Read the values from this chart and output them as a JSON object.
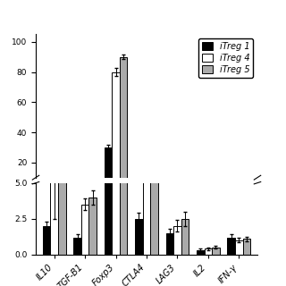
{
  "categories": [
    "IL10",
    "TGF-B1",
    "Foxp3",
    "CTLA4",
    "LAG3",
    "IL2",
    "IFN-γ"
  ],
  "series": [
    {
      "label": "iTreg 1",
      "color": "#000000",
      "edgecolor": "#000000",
      "values": [
        2.0,
        1.2,
        30.0,
        2.5,
        1.5,
        0.3,
        1.2
      ],
      "errors": [
        0.3,
        0.2,
        2.0,
        0.4,
        0.3,
        0.1,
        0.2
      ]
    },
    {
      "label": "iTreg 4",
      "color": "#ffffff",
      "edgecolor": "#000000",
      "values": [
        5.5,
        3.5,
        80.0,
        5.8,
        2.0,
        0.4,
        1.0
      ],
      "errors": [
        3.0,
        0.4,
        2.5,
        0.5,
        0.4,
        0.1,
        0.15
      ]
    },
    {
      "label": "iTreg 5",
      "color": "#aaaaaa",
      "edgecolor": "#000000",
      "values": [
        6.0,
        4.0,
        90.0,
        7.5,
        2.5,
        0.5,
        1.1
      ],
      "errors": [
        0.5,
        0.5,
        1.5,
        0.6,
        0.5,
        0.1,
        0.15
      ]
    }
  ],
  "ylabel_upper": "",
  "ylabel_lower": "",
  "bar_width": 0.25,
  "upper_ylim": [
    10,
    105
  ],
  "lower_ylim": [
    0,
    5
  ],
  "upper_yticks": [
    20,
    40,
    60,
    80,
    100
  ],
  "lower_yticks": [
    0,
    2.5,
    5
  ],
  "figsize": [
    3.2,
    3.2
  ],
  "dpi": 100,
  "legend_fontsize": 7,
  "tick_fontsize": 6.5,
  "label_fontsize": 7
}
